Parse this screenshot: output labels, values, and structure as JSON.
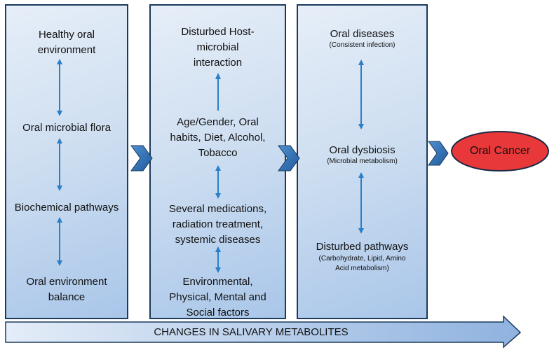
{
  "panels": [
    {
      "items": [
        {
          "text": "Healthy oral environment",
          "sub": ""
        },
        {
          "text": "Oral microbial flora",
          "sub": ""
        },
        {
          "text": "Biochemical pathways",
          "sub": ""
        },
        {
          "text": "Oral environment balance",
          "sub": ""
        }
      ]
    },
    {
      "items": [
        {
          "text": "Disturbed Host-microbial interaction",
          "sub": ""
        },
        {
          "text": "Age/Gender, Oral habits, Diet, Alcohol, Tobacco",
          "sub": ""
        },
        {
          "text": "Several medications, radiation treatment, systemic diseases",
          "sub": ""
        },
        {
          "text": "Environmental, Physical, Mental and Social factors",
          "sub": ""
        }
      ]
    },
    {
      "items": [
        {
          "text": "Oral diseases",
          "sub": "(Consistent infection)"
        },
        {
          "text": "Oral dysbiosis",
          "sub": "(Microbial metabolism)"
        },
        {
          "text": "Disturbed pathways",
          "sub": "(Carbohydrate, Lipid, Amino Acid metabolism)"
        }
      ]
    }
  ],
  "outcome": "Oral Cancer",
  "banner": "CHANGES IN SALIVARY METABOLITES",
  "colors": {
    "arrow": "#2a7fc9",
    "chevron": "#2b6cb0",
    "oval_fill": "#e8383a",
    "oval_stroke": "#1b2b45",
    "panel_border": "#1b3a5c"
  }
}
